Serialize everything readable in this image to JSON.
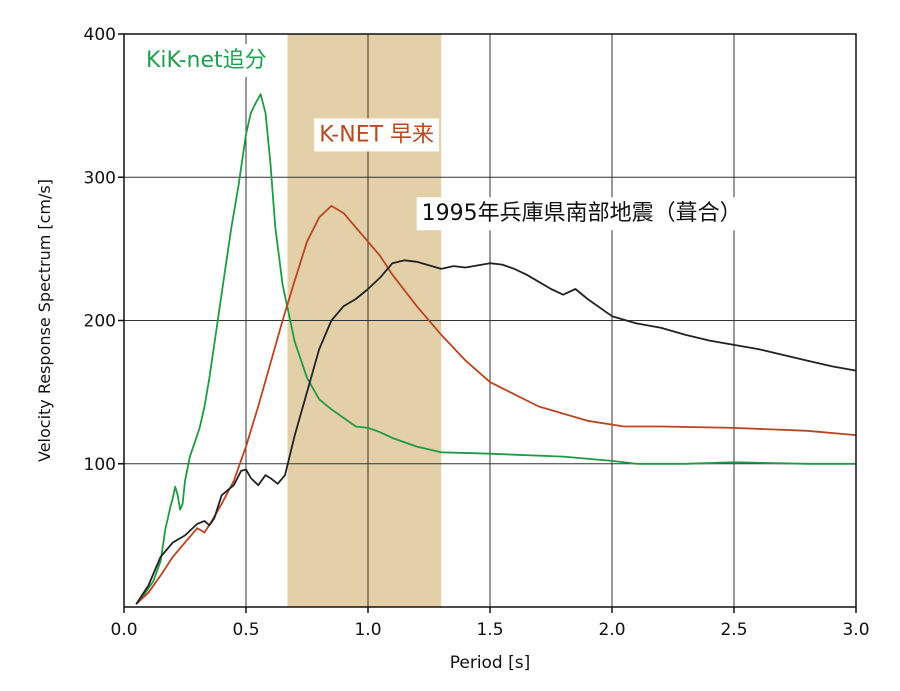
{
  "chart_data": {
    "type": "line",
    "title": "",
    "xlabel": "Period [s]",
    "ylabel": "Velocity Response Spectrum [cm/s]",
    "xlim": [
      0.0,
      3.0
    ],
    "ylim": [
      0,
      400
    ],
    "x_ticks": [
      {
        "v": 0.0,
        "label": "0.0"
      },
      {
        "v": 0.5,
        "label": "0.5"
      },
      {
        "v": 1.0,
        "label": "1.0"
      },
      {
        "v": 1.5,
        "label": "1.5"
      },
      {
        "v": 2.0,
        "label": "2.0"
      },
      {
        "v": 2.5,
        "label": "2.5"
      },
      {
        "v": 3.0,
        "label": "3.0"
      }
    ],
    "y_ticks": [
      {
        "v": 100,
        "label": "100"
      },
      {
        "v": 200,
        "label": "200"
      },
      {
        "v": 300,
        "label": "300"
      },
      {
        "v": 400,
        "label": "400"
      }
    ],
    "grid": true,
    "highlight_band": {
      "x_from": 0.67,
      "x_to": 1.3,
      "color": "#e3d0a8"
    },
    "series": [
      {
        "name": "KiK-net追分",
        "color": "#229944",
        "label_color": "#22a050",
        "x": [
          0.05,
          0.08,
          0.12,
          0.15,
          0.17,
          0.18,
          0.19,
          0.2,
          0.21,
          0.22,
          0.23,
          0.24,
          0.25,
          0.27,
          0.29,
          0.31,
          0.33,
          0.35,
          0.38,
          0.41,
          0.44,
          0.47,
          0.5,
          0.52,
          0.54,
          0.56,
          0.58,
          0.6,
          0.62,
          0.65,
          0.7,
          0.75,
          0.8,
          0.85,
          0.9,
          0.95,
          1.0,
          1.05,
          1.1,
          1.2,
          1.3,
          1.5,
          1.8,
          2.0,
          2.1,
          2.3,
          2.5,
          2.8,
          3.0
        ],
        "y": [
          2,
          8,
          18,
          32,
          55,
          62,
          70,
          76,
          84,
          78,
          68,
          72,
          88,
          105,
          115,
          125,
          140,
          160,
          195,
          230,
          265,
          295,
          330,
          345,
          352,
          358,
          345,
          310,
          265,
          225,
          185,
          160,
          145,
          138,
          132,
          126,
          125,
          122,
          118,
          112,
          108,
          107,
          105,
          102,
          100,
          100,
          101,
          100,
          100
        ]
      },
      {
        "name": "K-NET 早来",
        "color": "#bb4422",
        "label_color": "#b84a22",
        "x": [
          0.05,
          0.1,
          0.15,
          0.2,
          0.25,
          0.3,
          0.33,
          0.36,
          0.4,
          0.45,
          0.5,
          0.55,
          0.6,
          0.65,
          0.7,
          0.75,
          0.8,
          0.85,
          0.9,
          0.95,
          1.0,
          1.05,
          1.1,
          1.2,
          1.3,
          1.4,
          1.5,
          1.7,
          1.9,
          2.05,
          2.2,
          2.5,
          2.8,
          3.0
        ],
        "y": [
          2,
          10,
          22,
          35,
          45,
          55,
          52,
          60,
          72,
          88,
          112,
          140,
          170,
          200,
          228,
          255,
          272,
          280,
          275,
          265,
          255,
          245,
          232,
          210,
          190,
          172,
          157,
          140,
          130,
          126,
          126,
          125,
          123,
          120
        ]
      },
      {
        "name": "1995年兵庫県南部地震（葺合）",
        "color": "#222222",
        "label_color": "#111111",
        "x": [
          0.05,
          0.1,
          0.15,
          0.2,
          0.25,
          0.3,
          0.33,
          0.35,
          0.37,
          0.4,
          0.45,
          0.48,
          0.5,
          0.52,
          0.55,
          0.58,
          0.6,
          0.63,
          0.66,
          0.7,
          0.75,
          0.8,
          0.85,
          0.9,
          0.95,
          1.0,
          1.05,
          1.1,
          1.15,
          1.2,
          1.3,
          1.35,
          1.4,
          1.5,
          1.55,
          1.6,
          1.65,
          1.7,
          1.75,
          1.8,
          1.85,
          1.9,
          2.0,
          2.1,
          2.2,
          2.3,
          2.4,
          2.5,
          2.6,
          2.7,
          2.8,
          2.9,
          3.0
        ],
        "y": [
          2,
          15,
          35,
          45,
          50,
          58,
          60,
          57,
          62,
          78,
          85,
          95,
          96,
          90,
          85,
          92,
          90,
          86,
          92,
          120,
          150,
          180,
          200,
          210,
          215,
          222,
          230,
          240,
          242,
          241,
          236,
          238,
          237,
          240,
          239,
          236,
          232,
          227,
          222,
          218,
          222,
          215,
          203,
          198,
          195,
          190,
          186,
          183,
          180,
          176,
          172,
          168,
          165
        ]
      }
    ]
  }
}
